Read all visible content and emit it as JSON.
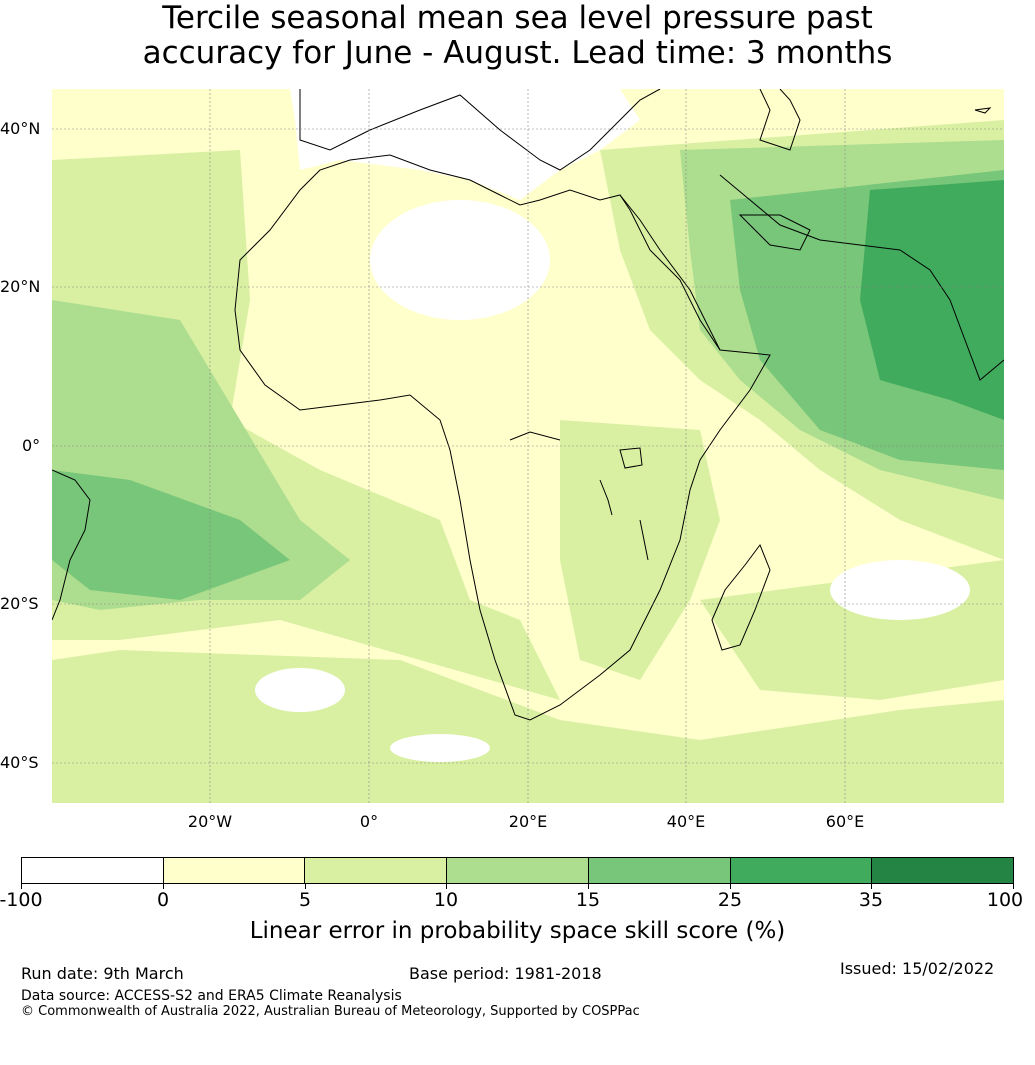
{
  "title": {
    "line1": "Tercile seasonal mean sea level pressure past",
    "line2": "accuracy for June - August. Lead time: 3 months"
  },
  "map": {
    "lat_labels": [
      "40°N",
      "20°N",
      "0°",
      "20°S",
      "40°S"
    ],
    "lon_labels": [
      "20°W",
      "0°",
      "20°E",
      "40°E",
      "60°E"
    ],
    "extent": {
      "lon": [
        -40,
        80
      ],
      "lat": [
        -45,
        45
      ]
    }
  },
  "colorbar": {
    "label": "Linear error in probability space skill score (%)",
    "ticks": [
      "-100",
      "0",
      "5",
      "10",
      "15",
      "25",
      "35",
      "100"
    ],
    "colors": [
      "#ffffff",
      "#ffffcc",
      "#d9f0a3",
      "#addd8e",
      "#78c679",
      "#41ab5d",
      "#238443"
    ]
  },
  "footer": {
    "run_date": "Run date: 9th March",
    "base_period": "Base period: 1981-2018",
    "issued": "Issued: 15/02/2022",
    "data_source": "Data source: ACCESS-S2 and ERA5 Climate Reanalysis",
    "copyright": "© Commonwealth of Australia 2022, Australian Bureau of Meteorology, Supported by COSPPac"
  }
}
